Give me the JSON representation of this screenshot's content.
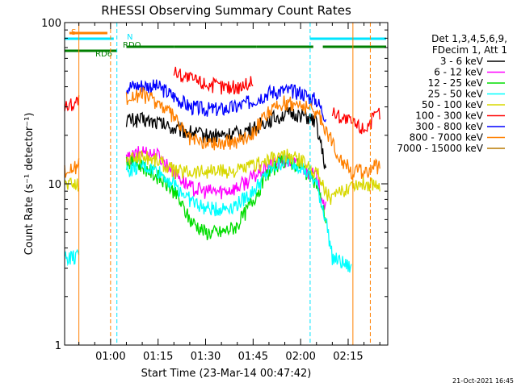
{
  "chart_data": {
    "type": "line",
    "title": "RHESSI Observing Summary Count Rates",
    "xlabel": "Start Time (23-Mar-14 00:47:42)",
    "ylabel": "Count Rate (s⁻¹ detector⁻¹)",
    "yscale": "log",
    "ylim": [
      1,
      100
    ],
    "xlim_minutes": [
      45.5,
      147.5
    ],
    "x_ticks": [
      "01:00",
      "01:15",
      "01:30",
      "01:45",
      "02:00",
      "02:15"
    ],
    "x_tick_minutes": [
      60,
      75,
      90,
      105,
      120,
      135
    ],
    "y_ticks": [
      "1",
      "10",
      "100"
    ],
    "grid": false,
    "legend_position": "right",
    "legend_header": [
      "Det 1,3,4,5,6,9,",
      "FDecim 1, Att 1"
    ],
    "footer": "21-Oct-2021 16:45",
    "flags": [
      {
        "label": "S",
        "color": "#ff8000",
        "segments": [
          [
            47,
            59
          ]
        ]
      },
      {
        "label": "N",
        "color": "#00e5ff",
        "segments": [
          [
            45.5,
            61
          ],
          [
            123,
            147
          ]
        ]
      },
      {
        "label": "RDO",
        "color": "#007f00",
        "segments": [
          [
            65,
            80
          ],
          [
            80,
            106
          ],
          [
            106,
            124
          ],
          [
            127,
            147
          ]
        ]
      },
      {
        "label": "RD6",
        "color": "#007f00",
        "segments": [
          [
            45.5,
            62
          ]
        ]
      }
    ],
    "night_lines_min": [
      62,
      123
    ],
    "saa_lines_min": [
      50,
      60,
      136.5,
      142
    ],
    "series": [
      {
        "name": "3 - 6 keV",
        "color": "#000000",
        "x": [
          65,
          70,
          75,
          80,
          85,
          90,
          95,
          100,
          105,
          110,
          115,
          120,
          125,
          128
        ],
        "y": [
          25,
          25,
          24,
          22,
          21,
          20,
          20,
          20.5,
          22,
          25,
          27,
          27,
          24,
          12
        ]
      },
      {
        "name": "6 - 12 keV",
        "color": "#ff00ff",
        "x": [
          65,
          70,
          75,
          80,
          85,
          90,
          95,
          100,
          105,
          110,
          115,
          120,
          125,
          128
        ],
        "y": [
          14,
          16,
          15,
          12,
          9.5,
          9,
          9,
          9.5,
          11,
          13,
          14,
          13,
          11,
          7
        ]
      },
      {
        "name": "12 - 25 keV",
        "color": "#00dd00",
        "x": [
          65,
          70,
          75,
          80,
          85,
          90,
          95,
          100,
          105,
          110,
          115,
          120,
          125,
          128
        ],
        "y": [
          14,
          13,
          11,
          9,
          6,
          5,
          5,
          5.5,
          8,
          12,
          14,
          13,
          10,
          6
        ]
      },
      {
        "name": "25 - 50 keV",
        "color": "#00ffff",
        "x": [
          45.5,
          50,
          65,
          70,
          75,
          80,
          85,
          90,
          95,
          100,
          105,
          110,
          115,
          120,
          125,
          128,
          130,
          136
        ],
        "y": [
          3.5,
          3.5,
          12,
          13,
          12,
          10,
          8,
          7,
          7,
          7.5,
          9,
          12,
          14,
          13,
          10,
          6,
          3.5,
          3
        ]
      },
      {
        "name": "50 - 100 keV",
        "color": "#d8d800",
        "x": [
          45.5,
          50,
          65,
          70,
          75,
          80,
          85,
          90,
          95,
          100,
          105,
          110,
          115,
          120,
          125,
          128,
          130,
          136,
          145
        ],
        "y": [
          10,
          10,
          14,
          15,
          14,
          12,
          12,
          12,
          12,
          12,
          13,
          14,
          15,
          14,
          12,
          9,
          8,
          10,
          10
        ]
      },
      {
        "name": "100 - 300 keV",
        "color": "#ff0000",
        "x": [
          45.5,
          50,
          80,
          85,
          90,
          95,
          100,
          105,
          130,
          136,
          140,
          145
        ],
        "y": [
          30,
          33,
          50,
          45,
          42,
          40,
          40,
          43,
          28,
          24,
          22,
          28
        ]
      },
      {
        "name": "300 - 800 keV",
        "color": "#0000ff",
        "x": [
          65,
          70,
          75,
          80,
          85,
          90,
          95,
          100,
          105,
          110,
          115,
          120,
          125,
          128
        ],
        "y": [
          40,
          41,
          40,
          35,
          30,
          29,
          29,
          30,
          33,
          37,
          38,
          37,
          33,
          26
        ]
      },
      {
        "name": "800 - 7000 keV",
        "color": "#ff8000",
        "x": [
          45.5,
          50,
          65,
          70,
          75,
          80,
          85,
          90,
          95,
          100,
          105,
          110,
          115,
          120,
          125,
          128,
          132,
          136,
          140,
          145
        ],
        "y": [
          12,
          13,
          34,
          36,
          32,
          26,
          19,
          18,
          18,
          18.5,
          21,
          28,
          32,
          31,
          28,
          22,
          15,
          12,
          12,
          13
        ]
      },
      {
        "name": "7000 - 15000 keV",
        "color": "#b87800",
        "x": [],
        "y": []
      }
    ]
  }
}
